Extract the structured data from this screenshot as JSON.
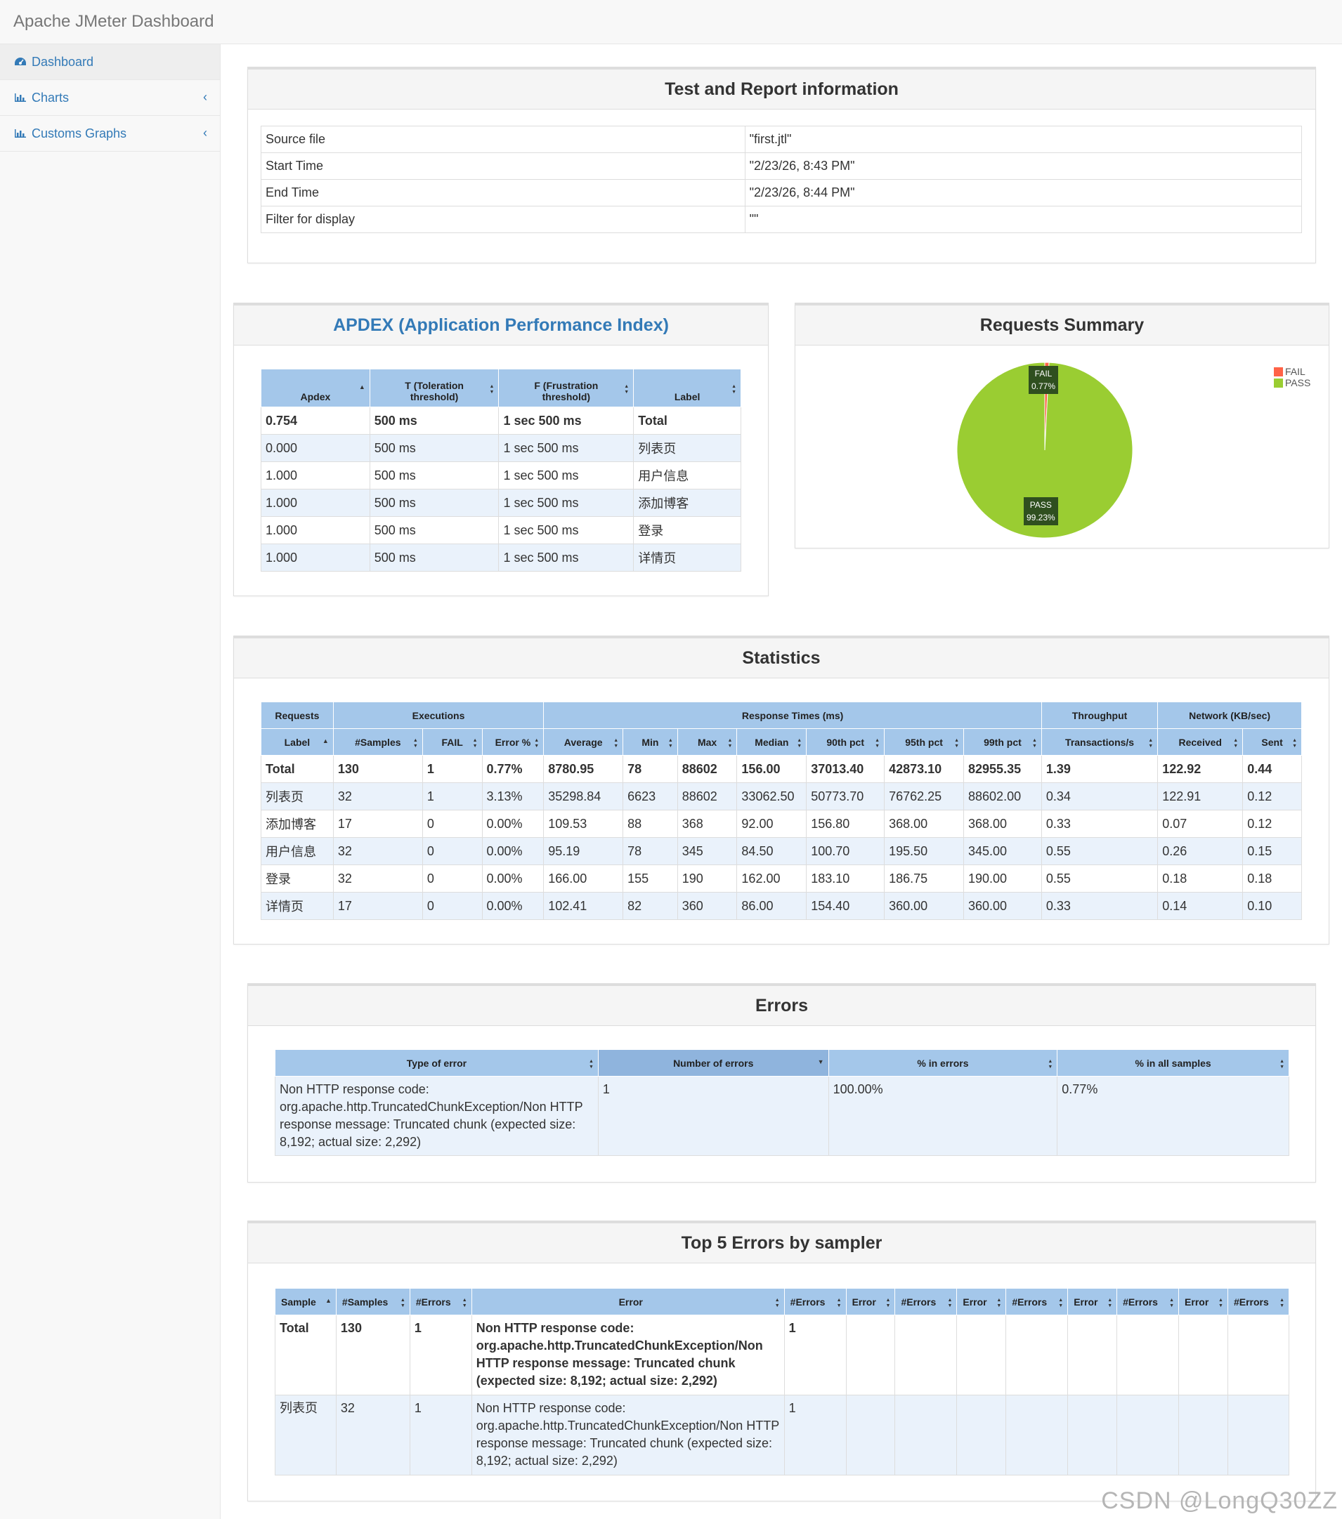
{
  "app": {
    "title": "Apache JMeter Dashboard"
  },
  "sidebar": {
    "items": [
      {
        "label": "Dashboard",
        "icon": "dashboard-icon"
      },
      {
        "label": "Charts",
        "icon": "bar-chart-icon"
      },
      {
        "label": "Customs Graphs",
        "icon": "bar-chart-icon"
      }
    ]
  },
  "test_info": {
    "title": "Test and Report information",
    "rows": [
      {
        "key": "Source file",
        "value": "\"first.jtl\""
      },
      {
        "key": "Start Time",
        "value": "\"2/23/26, 8:43 PM\""
      },
      {
        "key": "End Time",
        "value": "\"2/23/26, 8:44 PM\""
      },
      {
        "key": "Filter for display",
        "value": "\"\""
      }
    ]
  },
  "apdex": {
    "title": "APDEX (Application Performance Index)",
    "headers": [
      "Apdex",
      "T (Toleration threshold)",
      "F (Frustration threshold)",
      "Label"
    ],
    "header_lines": [
      [
        "Apdex"
      ],
      [
        "T (Toleration",
        "threshold)"
      ],
      [
        "F (Frustration",
        "threshold)"
      ],
      [
        "Label"
      ]
    ],
    "rows": [
      [
        "0.754",
        "500 ms",
        "1 sec 500 ms",
        "Total"
      ],
      [
        "0.000",
        "500 ms",
        "1 sec 500 ms",
        "列表页"
      ],
      [
        "1.000",
        "500 ms",
        "1 sec 500 ms",
        "用户信息"
      ],
      [
        "1.000",
        "500 ms",
        "1 sec 500 ms",
        "添加博客"
      ],
      [
        "1.000",
        "500 ms",
        "1 sec 500 ms",
        "登录"
      ],
      [
        "1.000",
        "500 ms",
        "1 sec 500 ms",
        "详情页"
      ]
    ]
  },
  "requests_summary": {
    "title": "Requests Summary",
    "legend": [
      {
        "name": "FAIL",
        "color": "#ff6347"
      },
      {
        "name": "PASS",
        "color": "#9acd32"
      }
    ],
    "labels": {
      "fail": [
        "FAIL",
        "0.77%"
      ],
      "pass": [
        "PASS",
        "99.23%"
      ]
    }
  },
  "chart_data": {
    "type": "pie",
    "categories": [
      "FAIL",
      "PASS"
    ],
    "values": [
      0.77,
      99.23
    ],
    "colors": [
      "#ff6347",
      "#9acd32"
    ],
    "legend_position": "top-right"
  },
  "statistics": {
    "title": "Statistics",
    "group_headers": [
      "Requests",
      "Executions",
      "Response Times (ms)",
      "Throughput",
      "Network (KB/sec)"
    ],
    "headers": [
      "Label",
      "#Samples",
      "FAIL",
      "Error %",
      "Average",
      "Min",
      "Max",
      "Median",
      "90th pct",
      "95th pct",
      "99th pct",
      "Transactions/s",
      "Received",
      "Sent"
    ],
    "rows": [
      [
        "Total",
        "130",
        "1",
        "0.77%",
        "8780.95",
        "78",
        "88602",
        "156.00",
        "37013.40",
        "42873.10",
        "82955.35",
        "1.39",
        "122.92",
        "0.44"
      ],
      [
        "列表页",
        "32",
        "1",
        "3.13%",
        "35298.84",
        "6623",
        "88602",
        "33062.50",
        "50773.70",
        "76762.25",
        "88602.00",
        "0.34",
        "122.91",
        "0.12"
      ],
      [
        "添加博客",
        "17",
        "0",
        "0.00%",
        "109.53",
        "88",
        "368",
        "92.00",
        "156.80",
        "368.00",
        "368.00",
        "0.33",
        "0.07",
        "0.12"
      ],
      [
        "用户信息",
        "32",
        "0",
        "0.00%",
        "95.19",
        "78",
        "345",
        "84.50",
        "100.70",
        "195.50",
        "345.00",
        "0.55",
        "0.26",
        "0.15"
      ],
      [
        "登录",
        "32",
        "0",
        "0.00%",
        "166.00",
        "155",
        "190",
        "162.00",
        "183.10",
        "186.75",
        "190.00",
        "0.55",
        "0.18",
        "0.18"
      ],
      [
        "详情页",
        "17",
        "0",
        "0.00%",
        "102.41",
        "82",
        "360",
        "86.00",
        "154.40",
        "360.00",
        "360.00",
        "0.33",
        "0.14",
        "0.10"
      ]
    ]
  },
  "errors": {
    "title": "Errors",
    "headers": [
      "Type of error",
      "Number of errors",
      "% in errors",
      "% in all samples"
    ],
    "rows": [
      [
        "Non HTTP response code: org.apache.http.TruncatedChunkException/Non HTTP response message: Truncated chunk (expected size: 8,192; actual size: 2,292)",
        "1",
        "100.00%",
        "0.77%"
      ]
    ]
  },
  "top5": {
    "title": "Top 5 Errors by sampler",
    "headers": [
      "Sample",
      "#Samples",
      "#Errors",
      "Error",
      "#Errors",
      "Error",
      "#Errors",
      "Error",
      "#Errors",
      "Error",
      "#Errors",
      "Error",
      "#Errors"
    ],
    "rows": [
      [
        "Total",
        "130",
        "1",
        "Non HTTP response code: org.apache.http.TruncatedChunkException/Non HTTP response message: Truncated chunk (expected size: 8,192; actual size: 2,292)",
        "1",
        "",
        "",
        "",
        "",
        "",
        "",
        "",
        ""
      ],
      [
        "列表页",
        "32",
        "1",
        "Non HTTP response code: org.apache.http.TruncatedChunkException/Non HTTP response message: Truncated chunk (expected size: 8,192; actual size: 2,292)",
        "1",
        "",
        "",
        "",
        "",
        "",
        "",
        "",
        ""
      ]
    ]
  },
  "watermark": "CSDN @LongQ30ZZ"
}
